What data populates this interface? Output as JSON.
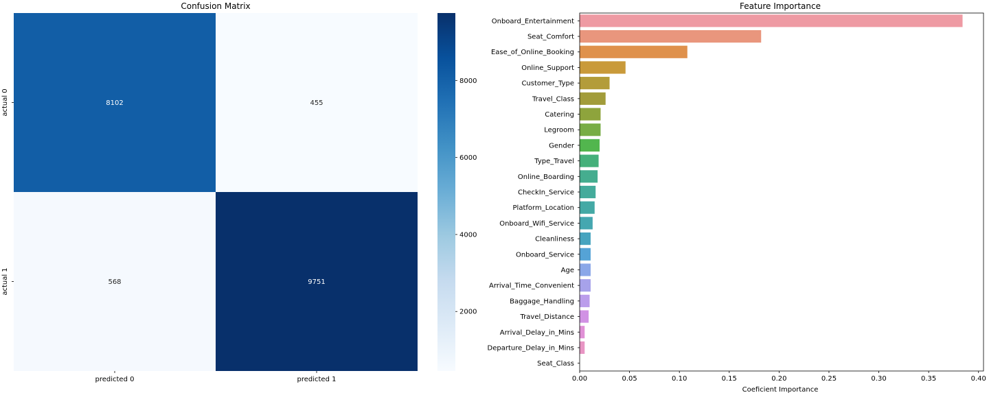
{
  "chart_data": [
    {
      "type": "heatmap",
      "title": "Confusion Matrix",
      "row_labels": [
        "actual 0",
        "actual 1"
      ],
      "col_labels": [
        "predicted 0",
        "predicted 1"
      ],
      "values": [
        [
          8102,
          455
        ],
        [
          568,
          9751
        ]
      ],
      "colormap": "Blues",
      "colorbar": {
        "range": [
          455,
          9751
        ],
        "ticks": [
          "2000",
          "4000",
          "6000",
          "8000"
        ]
      }
    },
    {
      "type": "bar",
      "orientation": "horizontal",
      "title": "Feature Importance",
      "xlabel": "Coeficient Importance",
      "ylabel": "",
      "xlim": [
        0,
        0.405
      ],
      "xticks": [
        "0.00",
        "0.05",
        "0.10",
        "0.15",
        "0.20",
        "0.25",
        "0.30",
        "0.35",
        "0.40"
      ],
      "categories": [
        "Onboard_Entertainment",
        "Seat_Comfort",
        "Ease_of_Online_Booking",
        "Online_Support",
        "Customer_Type",
        "Travel_Class",
        "Catering",
        "Legroom",
        "Gender",
        "Type_Travel",
        "Online_Boarding",
        "CheckIn_Service",
        "Platform_Location",
        "Onboard_Wifi_Service",
        "Cleanliness",
        "Onboard_Service",
        "Age",
        "Arrival_Time_Convenient",
        "Baggage_Handling",
        "Travel_Distance",
        "Arrival_Delay_in_Mins",
        "Departure_Delay_in_Mins",
        "Seat_Class"
      ],
      "values": [
        0.384,
        0.182,
        0.108,
        0.046,
        0.03,
        0.026,
        0.021,
        0.021,
        0.02,
        0.019,
        0.018,
        0.016,
        0.015,
        0.013,
        0.011,
        0.011,
        0.011,
        0.011,
        0.01,
        0.009,
        0.005,
        0.005,
        0.0
      ],
      "colors": [
        "#ee9aa3",
        "#e9967d",
        "#df914c",
        "#c99a3a",
        "#b39c3a",
        "#a29c3a",
        "#8ea43c",
        "#78ad45",
        "#52b64e",
        "#45b07a",
        "#45ad8f",
        "#44ab9b",
        "#44a9a5",
        "#45a7b0",
        "#47a4bf",
        "#55a3d6",
        "#8aa7e8",
        "#a7a2ea",
        "#bb9deb",
        "#d192e4",
        "#e090d6",
        "#e895c4",
        "#eb9cb1"
      ]
    }
  ]
}
